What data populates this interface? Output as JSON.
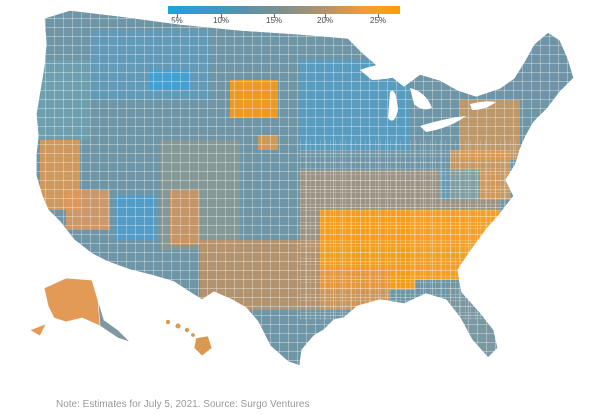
{
  "legend": {
    "labels": [
      "5%",
      "10%",
      "15%",
      "20%",
      "25%"
    ],
    "colors": [
      "#1fa2dd",
      "#4e93b3",
      "#7f918a",
      "#c39460",
      "#ff9d00"
    ]
  },
  "map": {
    "subject": "US counties shaded by estimated percentage",
    "colors": {
      "low": "#3f9dc7",
      "mid_low": "#5b91a8",
      "mid": "#7f918a",
      "mid_high": "#c9915a",
      "high": "#ff9d00",
      "border": "#ffffff"
    }
  },
  "note": "Note: Estimates for July 5, 2021. Source: Surgo Ventures"
}
